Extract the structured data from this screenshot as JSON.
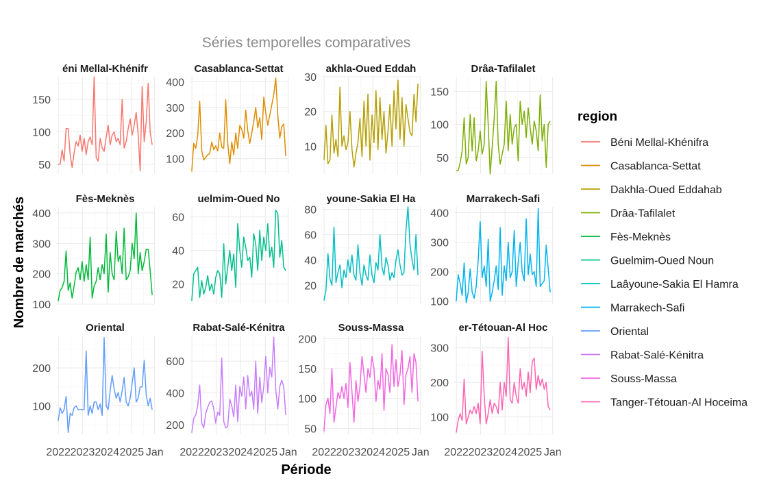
{
  "chart_data": {
    "type": "line",
    "title": "Séries temporelles comparatives",
    "xlabel": "Période",
    "ylabel": "Nombre de marchés",
    "legend": {
      "title": "region",
      "placement": "right"
    },
    "x_tick_labels": [
      "2022",
      "2023",
      "2024",
      "2025",
      "Jan"
    ],
    "x_range": [
      "2022-01",
      "2025-12"
    ],
    "x": [
      "2022-01",
      "2022-02",
      "2022-03",
      "2022-04",
      "2022-05",
      "2022-06",
      "2022-07",
      "2022-08",
      "2022-09",
      "2022-10",
      "2022-11",
      "2022-12",
      "2023-01",
      "2023-02",
      "2023-03",
      "2023-04",
      "2023-05",
      "2023-06",
      "2023-07",
      "2023-08",
      "2023-09",
      "2023-10",
      "2023-11",
      "2023-12",
      "2024-01",
      "2024-02",
      "2024-03",
      "2024-04",
      "2024-05",
      "2024-06",
      "2024-07",
      "2024-08",
      "2024-09",
      "2024-10",
      "2024-11",
      "2024-12",
      "2025-01",
      "2025-02",
      "2025-03",
      "2025-04",
      "2025-05",
      "2025-06",
      "2025-07",
      "2025-08",
      "2025-09",
      "2025-10",
      "2025-11",
      "2025-12"
    ],
    "facets": [
      {
        "name": "Béni Mellal-Khénifra",
        "strip": "éni Mellal-Khénifr",
        "color": "#F8766D",
        "ylim": [
          35,
          185
        ],
        "yticks": [
          50,
          100,
          150
        ],
        "yticklabels": [
          "50",
          "100",
          "150"
        ],
        "values": [
          50,
          50,
          72,
          55,
          105,
          105,
          65,
          45,
          68,
          85,
          78,
          95,
          70,
          90,
          65,
          85,
          92,
          80,
          185,
          60,
          55,
          90,
          75,
          70,
          92,
          110,
          80,
          95,
          100,
          85,
          90,
          80,
          150,
          75,
          85,
          105,
          120,
          95,
          110,
          130,
          95,
          40,
          170,
          85,
          115,
          175,
          100,
          80
        ]
      },
      {
        "name": "Casablanca-Settat",
        "strip": "Casablanca-Settat",
        "color": "#DE8C00",
        "ylim": [
          40,
          420
        ],
        "yticks": [
          100,
          200,
          300,
          400
        ],
        "yticklabels": [
          "100",
          "200",
          "300",
          "400"
        ],
        "values": [
          50,
          160,
          140,
          190,
          325,
          130,
          95,
          105,
          115,
          120,
          165,
          135,
          150,
          130,
          200,
          145,
          140,
          330,
          160,
          80,
          165,
          115,
          200,
          140,
          230,
          215,
          180,
          290,
          210,
          160,
          200,
          245,
          300,
          220,
          260,
          175,
          340,
          280,
          230,
          270,
          310,
          350,
          415,
          270,
          180,
          225,
          235,
          110
        ]
      },
      {
        "name": "Dakhla-Oued Eddahab",
        "strip": "akhla-Oued Eddah",
        "color": "#B79F00",
        "ylim": [
          2,
          30
        ],
        "yticks": [
          10,
          20,
          30
        ],
        "yticklabels": [
          "10",
          "20",
          "30"
        ],
        "values": [
          6,
          16,
          5,
          6,
          19,
          8,
          12,
          7,
          27,
          10,
          13,
          9,
          11,
          20,
          9,
          4,
          8,
          11,
          18,
          7,
          23,
          10,
          25,
          6,
          19,
          11,
          26,
          9,
          24,
          12,
          20,
          8,
          14,
          22,
          10,
          26,
          15,
          29,
          12,
          24,
          10,
          22,
          18,
          14,
          13,
          25,
          17,
          28
        ]
      },
      {
        "name": "Drâa-Tafilalet",
        "strip": "Drâa-Tafilalet",
        "color": "#7CAE00",
        "ylim": [
          25,
          172
        ],
        "yticks": [
          50,
          100,
          150
        ],
        "yticklabels": [
          "50",
          "100",
          "150"
        ],
        "values": [
          30,
          30,
          42,
          60,
          110,
          40,
          50,
          115,
          60,
          110,
          45,
          60,
          90,
          55,
          70,
          165,
          100,
          25,
          65,
          110,
          165,
          70,
          40,
          55,
          70,
          135,
          60,
          115,
          70,
          95,
          100,
          45,
          135,
          100,
          120,
          80,
          125,
          95,
          70,
          105,
          90,
          60,
          145,
          75,
          100,
          35,
          100,
          105
        ]
      },
      {
        "name": "Fès-Meknès",
        "strip": "Fès-Meknès",
        "color": "#00BA38",
        "ylim": [
          100,
          420
        ],
        "yticks": [
          100,
          200,
          300,
          400
        ],
        "yticklabels": [
          "100",
          "200",
          "300",
          "400"
        ],
        "values": [
          110,
          145,
          155,
          175,
          275,
          145,
          170,
          120,
          160,
          205,
          220,
          180,
          240,
          175,
          230,
          180,
          320,
          120,
          160,
          175,
          220,
          180,
          230,
          200,
          330,
          140,
          270,
          200,
          180,
          340,
          240,
          260,
          200,
          350,
          180,
          190,
          210,
          300,
          250,
          400,
          200,
          270,
          210,
          240,
          280,
          280,
          210,
          130
        ]
      },
      {
        "name": "Guelmim-Oued Noun",
        "strip": "uelmim-Oued No",
        "color": "#00C08B",
        "ylim": [
          8,
          66
        ],
        "yticks": [
          20,
          40,
          60
        ],
        "yticklabels": [
          "20",
          "40",
          "60"
        ],
        "values": [
          10,
          26,
          28,
          30,
          12,
          22,
          14,
          18,
          25,
          16,
          20,
          14,
          24,
          28,
          26,
          12,
          44,
          20,
          30,
          40,
          28,
          38,
          18,
          56,
          40,
          30,
          48,
          42,
          34,
          36,
          24,
          50,
          44,
          28,
          52,
          34,
          48,
          40,
          56,
          36,
          42,
          30,
          64,
          62,
          36,
          46,
          30,
          28
        ]
      },
      {
        "name": "Laâyoune-Sakia El Hamra",
        "strip": "youne-Sakia El Ha",
        "color": "#00BFC4",
        "ylim": [
          5,
          82
        ],
        "yticks": [
          20,
          40,
          60,
          80
        ],
        "yticklabels": [
          "20",
          "40",
          "60",
          "80"
        ],
        "values": [
          8,
          16,
          45,
          25,
          20,
          66,
          22,
          30,
          36,
          18,
          32,
          26,
          40,
          30,
          44,
          28,
          24,
          52,
          30,
          20,
          36,
          28,
          24,
          44,
          28,
          22,
          38,
          32,
          60,
          34,
          28,
          42,
          36,
          24,
          30,
          26,
          40,
          48,
          36,
          28,
          30,
          64,
          82,
          52,
          40,
          32,
          60,
          28
        ]
      },
      {
        "name": "Marrakech-Safi",
        "strip": "Marrakech-Safi",
        "color": "#00B4F0",
        "ylim": [
          90,
          420
        ],
        "yticks": [
          100,
          200,
          300,
          400
        ],
        "yticklabels": [
          "100",
          "200",
          "300",
          "400"
        ],
        "values": [
          100,
          190,
          160,
          120,
          230,
          95,
          130,
          210,
          130,
          110,
          150,
          240,
          370,
          180,
          220,
          150,
          310,
          100,
          130,
          170,
          220,
          140,
          350,
          120,
          220,
          170,
          300,
          180,
          200,
          340,
          150,
          230,
          300,
          200,
          170,
          380,
          190,
          260,
          190,
          200,
          150,
          415,
          150,
          160,
          170,
          290,
          210,
          130
        ]
      },
      {
        "name": "Oriental",
        "strip": "Oriental",
        "color": "#619CFF",
        "ylim": [
          25,
          285
        ],
        "yticks": [
          100,
          200
        ],
        "yticklabels": [
          "100",
          "200"
        ],
        "values": [
          60,
          95,
          80,
          90,
          125,
          30,
          80,
          75,
          95,
          100,
          90,
          90,
          90,
          90,
          245,
          75,
          100,
          80,
          110,
          110,
          90,
          105,
          75,
          280,
          100,
          90,
          140,
          180,
          145,
          120,
          135,
          110,
          140,
          175,
          110,
          100,
          120,
          160,
          200,
          110,
          120,
          150,
          150,
          220,
          130,
          100,
          120,
          90
        ]
      },
      {
        "name": "Rabat-Salé-Kénitra",
        "strip": "Rabat-Salé-Kénitra",
        "color": "#C77CFF",
        "ylim": [
          140,
          760
        ],
        "yticks": [
          200,
          400,
          600
        ],
        "yticklabels": [
          "200",
          "400",
          "600"
        ],
        "values": [
          150,
          240,
          260,
          320,
          450,
          210,
          180,
          270,
          310,
          340,
          350,
          300,
          210,
          280,
          260,
          620,
          220,
          180,
          190,
          360,
          320,
          250,
          450,
          220,
          440,
          380,
          500,
          300,
          510,
          380,
          410,
          300,
          600,
          270,
          500,
          340,
          440,
          630,
          400,
          560,
          500,
          750,
          420,
          300,
          440,
          480,
          440,
          260
        ]
      },
      {
        "name": "Souss-Massa",
        "strip": "Souss-Massa",
        "color": "#F564E3",
        "ylim": [
          40,
          205
        ],
        "yticks": [
          50,
          100,
          150,
          200
        ],
        "yticklabels": [
          "50",
          "100",
          "150",
          "200"
        ],
        "values": [
          45,
          90,
          100,
          75,
          150,
          60,
          85,
          110,
          100,
          120,
          100,
          125,
          85,
          160,
          110,
          60,
          130,
          95,
          120,
          170,
          140,
          110,
          150,
          135,
          170,
          150,
          95,
          130,
          115,
          175,
          80,
          150,
          140,
          110,
          190,
          120,
          165,
          120,
          140,
          180,
          90,
          140,
          150,
          170,
          110,
          175,
          160,
          95
        ]
      },
      {
        "name": "Tanger-Tétouan-Al Hoceima",
        "strip": "er-Tétouan-Al Hoc",
        "color": "#FF64B0",
        "ylim": [
          50,
          335
        ],
        "yticks": [
          100,
          200,
          300
        ],
        "yticklabels": [
          "100",
          "200",
          "300"
        ],
        "values": [
          55,
          90,
          110,
          90,
          210,
          80,
          100,
          120,
          110,
          130,
          110,
          140,
          80,
          290,
          160,
          80,
          110,
          150,
          110,
          140,
          130,
          110,
          200,
          120,
          200,
          160,
          330,
          150,
          140,
          200,
          160,
          140,
          240,
          180,
          200,
          160,
          230,
          170,
          260,
          270,
          180,
          220,
          190,
          210,
          180,
          200,
          130,
          120
        ]
      }
    ]
  }
}
